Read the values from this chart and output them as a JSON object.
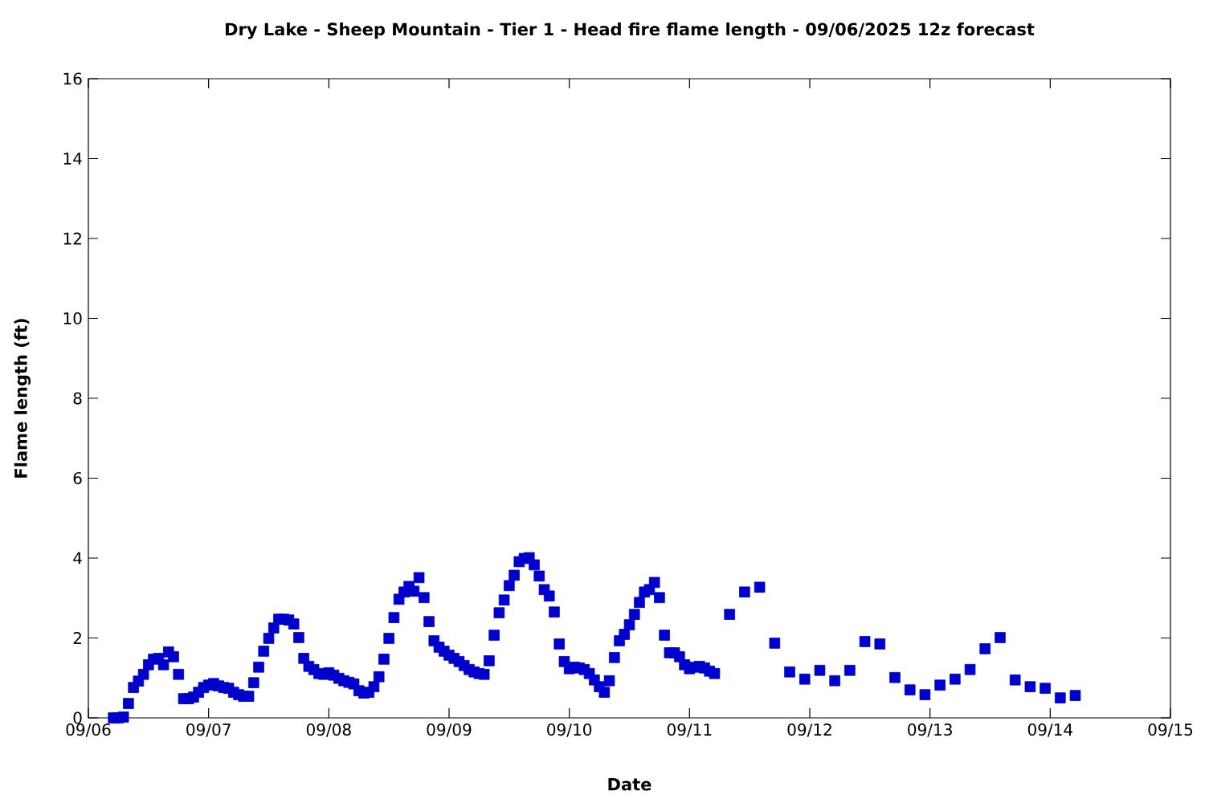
{
  "chart_data": {
    "type": "scatter",
    "title": "Dry Lake - Sheep Mountain - Tier 1 - Head fire flame length - 09/06/2025 12z forecast",
    "xlabel": "Date",
    "ylabel": "Flame length (ft)",
    "marker": "square",
    "xlim": [
      "2025-09-06",
      "2025-09-15"
    ],
    "ylim": [
      0,
      16
    ],
    "yticks": [
      0,
      2,
      4,
      6,
      8,
      10,
      12,
      14,
      16
    ],
    "xticks": [
      {
        "value": "2025-09-06",
        "label": "09/06"
      },
      {
        "value": "2025-09-07",
        "label": "09/07"
      },
      {
        "value": "2025-09-08",
        "label": "09/08"
      },
      {
        "value": "2025-09-09",
        "label": "09/09"
      },
      {
        "value": "2025-09-10",
        "label": "09/10"
      },
      {
        "value": "2025-09-11",
        "label": "09/11"
      },
      {
        "value": "2025-09-12",
        "label": "09/12"
      },
      {
        "value": "2025-09-13",
        "label": "09/13"
      },
      {
        "value": "2025-09-14",
        "label": "09/14"
      },
      {
        "value": "2025-09-15",
        "label": "09/15"
      }
    ],
    "series": [
      {
        "color": "#0000cc",
        "x": [
          "2025-09-06T05:00",
          "2025-09-06T06:00",
          "2025-09-06T07:00",
          "2025-09-06T08:00",
          "2025-09-06T09:00",
          "2025-09-06T10:00",
          "2025-09-06T11:00",
          "2025-09-06T12:00",
          "2025-09-06T13:00",
          "2025-09-06T14:00",
          "2025-09-06T15:00",
          "2025-09-06T16:00",
          "2025-09-06T17:00",
          "2025-09-06T18:00",
          "2025-09-06T19:00",
          "2025-09-06T20:00",
          "2025-09-06T21:00",
          "2025-09-06T22:00",
          "2025-09-06T23:00",
          "2025-09-07T00:00",
          "2025-09-07T01:00",
          "2025-09-07T02:00",
          "2025-09-07T03:00",
          "2025-09-07T04:00",
          "2025-09-07T05:00",
          "2025-09-07T06:00",
          "2025-09-07T07:00",
          "2025-09-07T08:00",
          "2025-09-07T09:00",
          "2025-09-07T10:00",
          "2025-09-07T11:00",
          "2025-09-07T12:00",
          "2025-09-07T13:00",
          "2025-09-07T14:00",
          "2025-09-07T15:00",
          "2025-09-07T16:00",
          "2025-09-07T17:00",
          "2025-09-07T18:00",
          "2025-09-07T19:00",
          "2025-09-07T20:00",
          "2025-09-07T21:00",
          "2025-09-07T22:00",
          "2025-09-07T23:00",
          "2025-09-08T00:00",
          "2025-09-08T01:00",
          "2025-09-08T02:00",
          "2025-09-08T03:00",
          "2025-09-08T04:00",
          "2025-09-08T05:00",
          "2025-09-08T06:00",
          "2025-09-08T07:00",
          "2025-09-08T08:00",
          "2025-09-08T09:00",
          "2025-09-08T10:00",
          "2025-09-08T11:00",
          "2025-09-08T12:00",
          "2025-09-08T13:00",
          "2025-09-08T14:00",
          "2025-09-08T15:00",
          "2025-09-08T16:00",
          "2025-09-08T17:00",
          "2025-09-08T18:00",
          "2025-09-08T19:00",
          "2025-09-08T20:00",
          "2025-09-08T21:00",
          "2025-09-08T22:00",
          "2025-09-08T23:00",
          "2025-09-09T00:00",
          "2025-09-09T01:00",
          "2025-09-09T02:00",
          "2025-09-09T03:00",
          "2025-09-09T04:00",
          "2025-09-09T05:00",
          "2025-09-09T06:00",
          "2025-09-09T07:00",
          "2025-09-09T08:00",
          "2025-09-09T09:00",
          "2025-09-09T10:00",
          "2025-09-09T11:00",
          "2025-09-09T12:00",
          "2025-09-09T13:00",
          "2025-09-09T14:00",
          "2025-09-09T15:00",
          "2025-09-09T16:00",
          "2025-09-09T17:00",
          "2025-09-09T18:00",
          "2025-09-09T19:00",
          "2025-09-09T20:00",
          "2025-09-09T21:00",
          "2025-09-09T22:00",
          "2025-09-09T23:00",
          "2025-09-10T00:00",
          "2025-09-10T01:00",
          "2025-09-10T02:00",
          "2025-09-10T03:00",
          "2025-09-10T04:00",
          "2025-09-10T05:00",
          "2025-09-10T06:00",
          "2025-09-10T07:00",
          "2025-09-10T08:00",
          "2025-09-10T09:00",
          "2025-09-10T10:00",
          "2025-09-10T11:00",
          "2025-09-10T12:00",
          "2025-09-10T13:00",
          "2025-09-10T14:00",
          "2025-09-10T15:00",
          "2025-09-10T16:00",
          "2025-09-10T17:00",
          "2025-09-10T18:00",
          "2025-09-10T19:00",
          "2025-09-10T20:00",
          "2025-09-10T21:00",
          "2025-09-10T22:00",
          "2025-09-10T23:00",
          "2025-09-11T00:00",
          "2025-09-11T01:00",
          "2025-09-11T02:00",
          "2025-09-11T03:00",
          "2025-09-11T04:00",
          "2025-09-11T05:00",
          "2025-09-11T08:00",
          "2025-09-11T11:00",
          "2025-09-11T14:00",
          "2025-09-11T17:00",
          "2025-09-11T20:00",
          "2025-09-11T23:00",
          "2025-09-12T02:00",
          "2025-09-12T05:00",
          "2025-09-12T08:00",
          "2025-09-12T11:00",
          "2025-09-12T14:00",
          "2025-09-12T17:00",
          "2025-09-12T20:00",
          "2025-09-12T23:00",
          "2025-09-13T02:00",
          "2025-09-13T05:00",
          "2025-09-13T08:00",
          "2025-09-13T11:00",
          "2025-09-13T14:00",
          "2025-09-13T17:00",
          "2025-09-13T20:00",
          "2025-09-13T23:00",
          "2025-09-14T02:00",
          "2025-09-14T05:00"
        ],
        "values": [
          0.0,
          0.0,
          0.02,
          0.36,
          0.76,
          0.92,
          1.09,
          1.33,
          1.47,
          1.49,
          1.33,
          1.65,
          1.53,
          1.09,
          0.48,
          0.48,
          0.52,
          0.64,
          0.76,
          0.82,
          0.86,
          0.8,
          0.76,
          0.74,
          0.64,
          0.58,
          0.54,
          0.54,
          0.88,
          1.27,
          1.67,
          1.99,
          2.25,
          2.47,
          2.47,
          2.45,
          2.35,
          2.01,
          1.49,
          1.29,
          1.21,
          1.11,
          1.09,
          1.13,
          1.07,
          0.99,
          0.93,
          0.89,
          0.85,
          0.68,
          0.62,
          0.64,
          0.78,
          1.03,
          1.47,
          1.99,
          2.51,
          2.97,
          3.15,
          3.29,
          3.17,
          3.51,
          3.01,
          2.41,
          1.93,
          1.77,
          1.67,
          1.57,
          1.49,
          1.41,
          1.31,
          1.21,
          1.15,
          1.11,
          1.09,
          1.43,
          2.07,
          2.63,
          2.95,
          3.31,
          3.57,
          3.91,
          3.99,
          4.01,
          3.83,
          3.55,
          3.21,
          3.05,
          2.65,
          1.85,
          1.41,
          1.23,
          1.27,
          1.25,
          1.21,
          1.11,
          0.95,
          0.78,
          0.64,
          0.93,
          1.51,
          1.93,
          2.09,
          2.33,
          2.59,
          2.89,
          3.15,
          3.21,
          3.39,
          3.01,
          2.07,
          1.63,
          1.63,
          1.53,
          1.33,
          1.23,
          1.27,
          1.29,
          1.25,
          1.17,
          1.11,
          2.59,
          3.15,
          3.27,
          1.87,
          1.15,
          0.97,
          1.19,
          0.93,
          1.19,
          1.91,
          1.85,
          1.01,
          0.7,
          0.58,
          0.82,
          0.97,
          1.21,
          1.73,
          2.01,
          0.95,
          0.78,
          0.74,
          0.5,
          0.56
        ]
      }
    ]
  }
}
